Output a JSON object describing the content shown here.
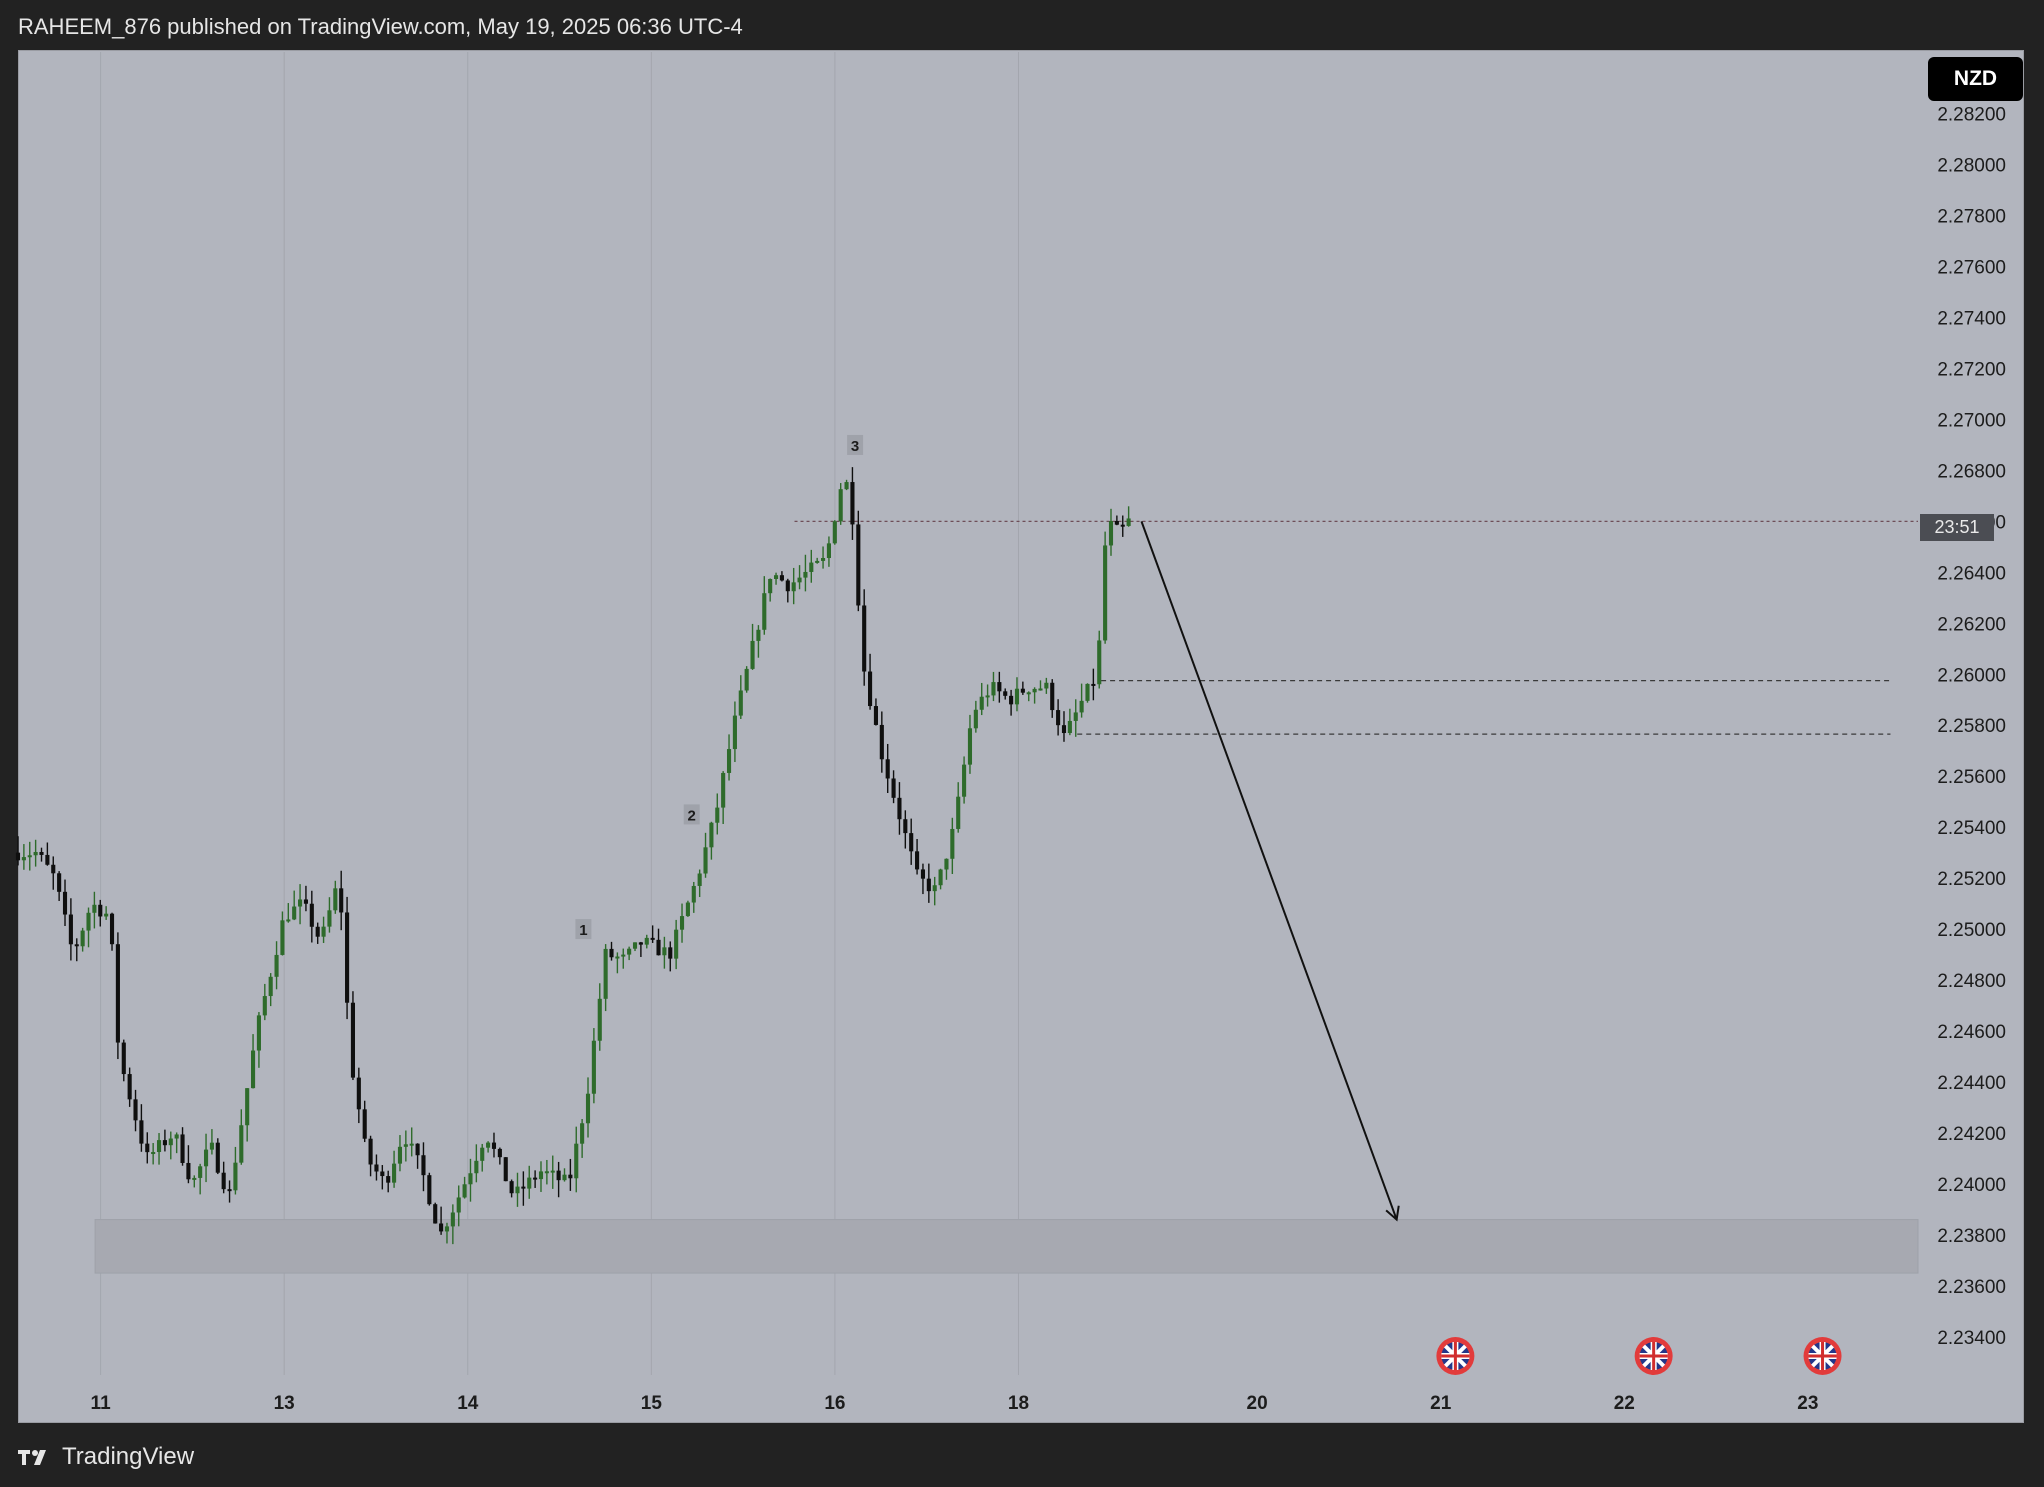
{
  "header": {
    "publisher_line": "RAHEEM_876 published on TradingView.com, May 19, 2025 06:36 UTC-4"
  },
  "footer": {
    "brand": "TradingView",
    "logo_icon": "tradingview-logo-icon"
  },
  "currency_badge": "NZD",
  "price_tag": "23:51",
  "colors": {
    "background": "#b2b5be",
    "bull_candle": "#2e6b2b",
    "bear_candle": "#0f0f0f",
    "zone": "#a7a9b1",
    "dashed": "#3a3a3a"
  },
  "chart_data": {
    "type": "candlestick",
    "y_axis": {
      "ticks": [
        "2.28200",
        "2.28000",
        "2.27800",
        "2.27600",
        "2.27400",
        "2.27200",
        "2.27000",
        "2.26800",
        "2.26600",
        "2.26400",
        "2.26200",
        "2.26000",
        "2.25800",
        "2.25600",
        "2.25400",
        "2.25200",
        "2.25000",
        "2.24800",
        "2.24600",
        "2.24400",
        "2.24200",
        "2.24000",
        "2.23800",
        "2.23600",
        "2.23400"
      ],
      "ylim": [
        2.2325,
        2.2845
      ]
    },
    "x_axis": {
      "labels": [
        "11",
        "13",
        "14",
        "15",
        "16",
        "18",
        "20",
        "21",
        "22",
        "23"
      ],
      "label_positions": [
        0.0,
        1.0,
        2.0,
        3.0,
        4.0,
        5.0,
        6.3,
        7.3,
        8.3,
        9.3
      ],
      "xlim": [
        -0.45,
        9.9
      ]
    },
    "event_icons": {
      "icon": "uk-flag-icon",
      "positions": [
        7.38,
        8.46,
        9.38
      ]
    },
    "wave_labels": [
      {
        "text": "1",
        "x": 2.63,
        "y": 2.25
      },
      {
        "text": "2",
        "x": 3.22,
        "y": 2.2545
      },
      {
        "text": "3",
        "x": 4.11,
        "y": 2.269
      }
    ],
    "anchor_points": [
      [
        -0.45,
        2.253
      ],
      [
        -0.35,
        2.253
      ],
      [
        -0.25,
        2.252
      ],
      [
        -0.15,
        2.249
      ],
      [
        -0.05,
        2.251
      ],
      [
        0.05,
        2.2505
      ],
      [
        0.1,
        2.245
      ],
      [
        0.25,
        2.241
      ],
      [
        0.4,
        2.242
      ],
      [
        0.5,
        2.24
      ],
      [
        0.6,
        2.2415
      ],
      [
        0.7,
        2.2395
      ],
      [
        0.85,
        2.246
      ],
      [
        1.0,
        2.2505
      ],
      [
        1.1,
        2.251
      ],
      [
        1.2,
        2.2495
      ],
      [
        1.3,
        2.252
      ],
      [
        1.36,
        2.245
      ],
      [
        1.45,
        2.241
      ],
      [
        1.55,
        2.24
      ],
      [
        1.65,
        2.242
      ],
      [
        1.75,
        2.2405
      ],
      [
        1.85,
        2.238
      ],
      [
        1.95,
        2.2395
      ],
      [
        2.1,
        2.242
      ],
      [
        2.25,
        2.2395
      ],
      [
        2.4,
        2.2405
      ],
      [
        2.55,
        2.24
      ],
      [
        2.65,
        2.2435
      ],
      [
        2.75,
        2.249
      ],
      [
        2.85,
        2.2488
      ],
      [
        2.95,
        2.2495
      ],
      [
        3.1,
        2.249
      ],
      [
        3.25,
        2.252
      ],
      [
        3.35,
        2.2545
      ],
      [
        3.45,
        2.258
      ],
      [
        3.55,
        2.261
      ],
      [
        3.65,
        2.264
      ],
      [
        3.75,
        2.2635
      ],
      [
        3.85,
        2.264
      ],
      [
        3.95,
        2.2645
      ],
      [
        4.05,
        2.268
      ],
      [
        4.1,
        2.266
      ],
      [
        4.15,
        2.2605
      ],
      [
        4.25,
        2.257
      ],
      [
        4.35,
        2.2545
      ],
      [
        4.45,
        2.252
      ],
      [
        4.55,
        2.2515
      ],
      [
        4.65,
        2.254
      ],
      [
        4.75,
        2.2585
      ],
      [
        4.85,
        2.2595
      ],
      [
        4.95,
        2.259
      ],
      [
        5.05,
        2.2595
      ],
      [
        5.15,
        2.2595
      ],
      [
        5.25,
        2.2575
      ],
      [
        5.35,
        2.259
      ],
      [
        5.43,
        2.26
      ],
      [
        5.48,
        2.266
      ],
      [
        5.55,
        2.2655
      ],
      [
        5.6,
        2.266
      ]
    ],
    "candle_count": 190,
    "levels": [
      {
        "name": "peak-level",
        "y": 2.266,
        "x_start": 3.78,
        "x_end": 9.9,
        "style": "dashed-thin"
      },
      {
        "name": "level-2",
        "y": 2.25975,
        "x_start": 5.45,
        "x_end": 9.75,
        "style": "dashed"
      },
      {
        "name": "level-3",
        "y": 2.25765,
        "x_start": 5.32,
        "x_end": 9.75,
        "style": "dashed"
      }
    ],
    "zone": {
      "y_top": 2.2386,
      "y_bottom": 2.2365,
      "x_start": -0.03,
      "x_end": 9.9
    },
    "arrow": {
      "from": [
        5.67,
        2.266
      ],
      "to": [
        7.06,
        2.2386
      ]
    },
    "last_price": 2.266
  }
}
